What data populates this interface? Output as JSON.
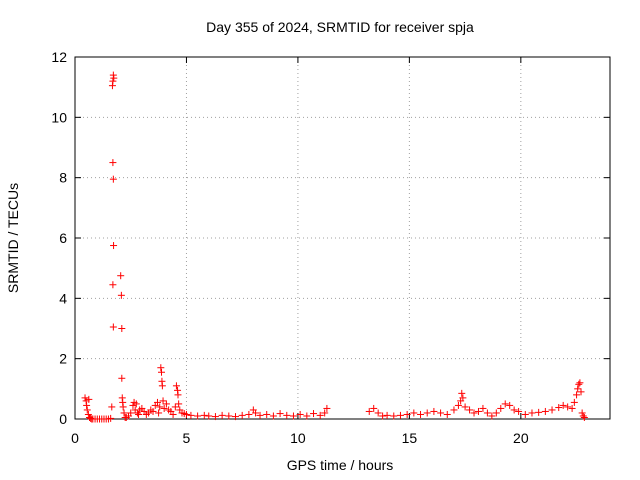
{
  "chart_data": {
    "type": "scatter",
    "title": "Day 355 of 2024, SRMTID for receiver spja",
    "xlabel": "GPS time / hours",
    "ylabel": "SRMTID / TECUs",
    "xlim": [
      0,
      24
    ],
    "ylim": [
      0,
      12
    ],
    "xticks": [
      0,
      5,
      10,
      15,
      20
    ],
    "yticks": [
      0,
      2,
      4,
      6,
      8,
      10,
      12
    ],
    "grid": true,
    "marker": "plus",
    "color": "#ff0000",
    "series": [
      {
        "name": "SRMTID",
        "points": [
          [
            0.45,
            0.7
          ],
          [
            0.5,
            0.6
          ],
          [
            0.52,
            0.45
          ],
          [
            0.55,
            0.3
          ],
          [
            0.6,
            0.15
          ],
          [
            0.62,
            0.65
          ],
          [
            0.65,
            0.05
          ],
          [
            0.7,
            0.02
          ],
          [
            0.75,
            0.0
          ],
          [
            0.8,
            0.0
          ],
          [
            0.9,
            0.0
          ],
          [
            1.0,
            0.0
          ],
          [
            1.1,
            0.0
          ],
          [
            1.2,
            0.0
          ],
          [
            1.3,
            0.0
          ],
          [
            1.4,
            0.0
          ],
          [
            1.5,
            0.0
          ],
          [
            1.6,
            0.02
          ],
          [
            1.65,
            0.4
          ],
          [
            1.68,
            11.05
          ],
          [
            1.7,
            11.2
          ],
          [
            1.72,
            11.4
          ],
          [
            1.74,
            11.3
          ],
          [
            1.7,
            8.5
          ],
          [
            1.72,
            7.95
          ],
          [
            1.73,
            5.75
          ],
          [
            1.7,
            4.45
          ],
          [
            1.72,
            3.05
          ],
          [
            2.05,
            4.75
          ],
          [
            2.08,
            4.1
          ],
          [
            2.1,
            3.0
          ],
          [
            2.1,
            1.35
          ],
          [
            2.12,
            0.7
          ],
          [
            2.14,
            0.55
          ],
          [
            2.16,
            0.4
          ],
          [
            2.2,
            0.2
          ],
          [
            2.25,
            0.05
          ],
          [
            2.3,
            0.05
          ],
          [
            2.4,
            0.1
          ],
          [
            2.5,
            0.2
          ],
          [
            2.6,
            0.45
          ],
          [
            2.65,
            0.55
          ],
          [
            2.7,
            0.3
          ],
          [
            2.75,
            0.5
          ],
          [
            2.8,
            0.2
          ],
          [
            2.85,
            0.15
          ],
          [
            2.9,
            0.3
          ],
          [
            3.0,
            0.35
          ],
          [
            3.1,
            0.25
          ],
          [
            3.2,
            0.15
          ],
          [
            3.3,
            0.2
          ],
          [
            3.4,
            0.3
          ],
          [
            3.5,
            0.25
          ],
          [
            3.6,
            0.45
          ],
          [
            3.7,
            0.55
          ],
          [
            3.75,
            0.2
          ],
          [
            3.8,
            0.4
          ],
          [
            3.85,
            1.7
          ],
          [
            3.88,
            1.55
          ],
          [
            3.9,
            1.25
          ],
          [
            3.92,
            1.1
          ],
          [
            3.95,
            0.6
          ],
          [
            4.0,
            0.35
          ],
          [
            4.1,
            0.5
          ],
          [
            4.2,
            0.3
          ],
          [
            4.3,
            0.25
          ],
          [
            4.4,
            0.15
          ],
          [
            4.5,
            0.4
          ],
          [
            4.55,
            1.1
          ],
          [
            4.6,
            0.95
          ],
          [
            4.62,
            0.8
          ],
          [
            4.65,
            0.5
          ],
          [
            4.7,
            0.3
          ],
          [
            4.8,
            0.2
          ],
          [
            4.9,
            0.18
          ],
          [
            5.0,
            0.15
          ],
          [
            5.2,
            0.12
          ],
          [
            5.5,
            0.1
          ],
          [
            5.8,
            0.12
          ],
          [
            6.0,
            0.1
          ],
          [
            6.3,
            0.08
          ],
          [
            6.6,
            0.12
          ],
          [
            6.9,
            0.1
          ],
          [
            7.2,
            0.08
          ],
          [
            7.5,
            0.12
          ],
          [
            7.8,
            0.15
          ],
          [
            8.0,
            0.3
          ],
          [
            8.1,
            0.2
          ],
          [
            8.3,
            0.12
          ],
          [
            8.6,
            0.15
          ],
          [
            8.9,
            0.1
          ],
          [
            9.2,
            0.18
          ],
          [
            9.5,
            0.12
          ],
          [
            9.8,
            0.1
          ],
          [
            10.1,
            0.15
          ],
          [
            10.4,
            0.1
          ],
          [
            10.7,
            0.18
          ],
          [
            11.0,
            0.12
          ],
          [
            11.2,
            0.2
          ],
          [
            11.3,
            0.35
          ],
          [
            13.2,
            0.25
          ],
          [
            13.4,
            0.35
          ],
          [
            13.6,
            0.2
          ],
          [
            13.8,
            0.1
          ],
          [
            14.0,
            0.12
          ],
          [
            14.3,
            0.1
          ],
          [
            14.6,
            0.12
          ],
          [
            14.9,
            0.15
          ],
          [
            15.2,
            0.2
          ],
          [
            15.5,
            0.15
          ],
          [
            15.8,
            0.2
          ],
          [
            16.1,
            0.25
          ],
          [
            16.4,
            0.2
          ],
          [
            16.7,
            0.15
          ],
          [
            17.0,
            0.3
          ],
          [
            17.2,
            0.45
          ],
          [
            17.3,
            0.6
          ],
          [
            17.35,
            0.85
          ],
          [
            17.4,
            0.7
          ],
          [
            17.5,
            0.4
          ],
          [
            17.7,
            0.3
          ],
          [
            17.9,
            0.2
          ],
          [
            18.1,
            0.25
          ],
          [
            18.3,
            0.35
          ],
          [
            18.5,
            0.2
          ],
          [
            18.7,
            0.1
          ],
          [
            18.9,
            0.2
          ],
          [
            19.1,
            0.35
          ],
          [
            19.3,
            0.5
          ],
          [
            19.5,
            0.45
          ],
          [
            19.7,
            0.3
          ],
          [
            19.9,
            0.25
          ],
          [
            20.2,
            0.15
          ],
          [
            20.5,
            0.2
          ],
          [
            20.8,
            0.22
          ],
          [
            21.1,
            0.25
          ],
          [
            21.4,
            0.3
          ],
          [
            21.7,
            0.38
          ],
          [
            21.9,
            0.45
          ],
          [
            22.1,
            0.4
          ],
          [
            22.3,
            0.35
          ],
          [
            22.4,
            0.55
          ],
          [
            22.5,
            0.8
          ],
          [
            22.55,
            1.0
          ],
          [
            22.6,
            1.15
          ],
          [
            22.65,
            1.2
          ],
          [
            22.7,
            0.9
          ],
          [
            22.75,
            0.2
          ],
          [
            22.8,
            0.1
          ],
          [
            22.85,
            0.05
          ]
        ]
      }
    ]
  }
}
